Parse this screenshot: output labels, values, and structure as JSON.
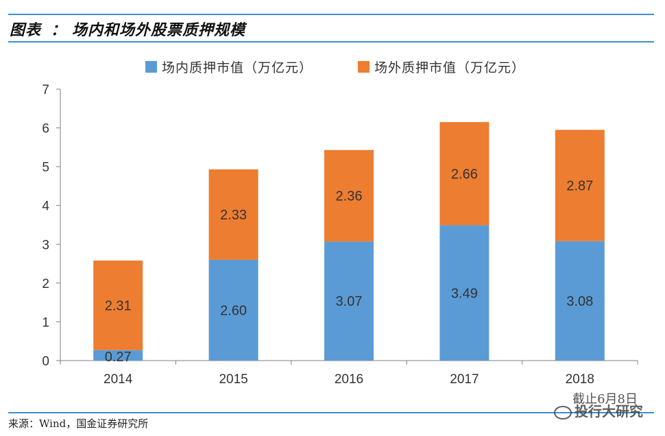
{
  "header": {
    "prefix": "图表",
    "colon": "：",
    "title": "场内和场外股票质押规模"
  },
  "chart_data": {
    "type": "bar",
    "stacked": true,
    "categories": [
      "2014",
      "2015",
      "2016",
      "2017",
      "2018"
    ],
    "series": [
      {
        "name": "场内质押市值（万亿元）",
        "color": "#5b9bd5",
        "values": [
          0.27,
          2.6,
          3.07,
          3.49,
          3.08
        ],
        "labels": [
          "0.27",
          "2.60",
          "3.07",
          "3.49",
          "3.08"
        ]
      },
      {
        "name": "场外质押市值（万亿元）",
        "color": "#ed7d31",
        "values": [
          2.31,
          2.33,
          2.36,
          2.66,
          2.87
        ],
        "labels": [
          "2.31",
          "2.33",
          "2.36",
          "2.66",
          "2.87"
        ]
      }
    ],
    "ylim": [
      0,
      7
    ],
    "yticks": [
      "0",
      "1",
      "2",
      "3",
      "4",
      "5",
      "6",
      "7"
    ],
    "legend_position": "top",
    "grid": false
  },
  "footer": {
    "source": "来源：Wind，国金证券研究所",
    "note": "截止6月8日",
    "watermark": "投行大研究"
  }
}
